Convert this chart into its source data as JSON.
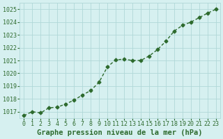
{
  "x": [
    0,
    1,
    2,
    3,
    4,
    5,
    6,
    7,
    8,
    9,
    10,
    11,
    12,
    13,
    14,
    15,
    16,
    17,
    18,
    19,
    20,
    21,
    22,
    23
  ],
  "y": [
    1016.7,
    1017.0,
    1016.9,
    1017.3,
    1017.35,
    1017.6,
    1017.9,
    1018.3,
    1018.65,
    1019.3,
    1020.5,
    1021.05,
    1021.1,
    1021.0,
    1021.0,
    1021.35,
    1021.85,
    1022.5,
    1023.3,
    1023.75,
    1024.0,
    1024.35,
    1024.7,
    1025.0
  ],
  "line_color": "#2d6a2d",
  "marker": "D",
  "marker_size": 2.5,
  "line_width": 1.0,
  "bg_color": "#d6f0f0",
  "grid_color": "#b0d8d8",
  "tick_label_color": "#2d6a2d",
  "xlabel": "Graphe pression niveau de la mer (hPa)",
  "xlabel_color": "#2d6a2d",
  "xlabel_fontsize": 7.5,
  "tick_fontsize": 6,
  "ylim": [
    1016.5,
    1025.5
  ],
  "yticks": [
    1017,
    1018,
    1019,
    1020,
    1021,
    1022,
    1023,
    1024,
    1025
  ],
  "xlim": [
    -0.5,
    23.5
  ],
  "xticks": [
    0,
    1,
    2,
    3,
    4,
    5,
    6,
    7,
    8,
    9,
    10,
    11,
    12,
    13,
    14,
    15,
    16,
    17,
    18,
    19,
    20,
    21,
    22,
    23
  ]
}
